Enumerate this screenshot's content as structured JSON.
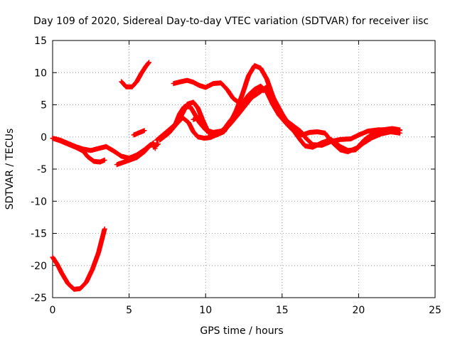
{
  "chart_data": {
    "type": "scatter",
    "title": "Day 109 of 2020, Sidereal Day-to-day VTEC variation (SDTVAR) for receiver iisc",
    "xlabel": "GPS time / hours",
    "ylabel": "SDTVAR / TECUs",
    "xlim": [
      0,
      25
    ],
    "ylim": [
      -25,
      15
    ],
    "xticks": [
      0,
      5,
      10,
      15,
      20,
      25
    ],
    "yticks": [
      -25,
      -20,
      -15,
      -10,
      -5,
      0,
      5,
      10,
      15
    ],
    "grid": true,
    "marker": "+",
    "color": "#ff0000",
    "series": [
      {
        "name": "s1",
        "points": [
          [
            0,
            -0.2
          ],
          [
            0.5,
            -0.5
          ],
          [
            1,
            -1
          ],
          [
            1.5,
            -1.5
          ],
          [
            2,
            -1.9
          ],
          [
            2.5,
            -2.1
          ],
          [
            3,
            -1.8
          ],
          [
            3.5,
            -1.5
          ],
          [
            4,
            -2.2
          ],
          [
            4.5,
            -3
          ],
          [
            5,
            -3.3
          ],
          [
            5.5,
            -2.8
          ],
          [
            6,
            -2
          ],
          [
            6.4,
            -1.2
          ]
        ]
      },
      {
        "name": "s2",
        "points": [
          [
            0,
            -0.2
          ],
          [
            0.5,
            -0.6
          ],
          [
            1,
            -1.1
          ],
          [
            1.5,
            -1.6
          ],
          [
            2,
            -2.2
          ],
          [
            2.3,
            -3.1
          ],
          [
            2.7,
            -3.8
          ],
          [
            3.1,
            -3.9
          ],
          [
            3.4,
            -3.6
          ]
        ]
      },
      {
        "name": "s3",
        "points": [
          [
            4.2,
            -4.3
          ],
          [
            4.8,
            -3.8
          ],
          [
            5.5,
            -3.2
          ],
          [
            6,
            -2.3
          ],
          [
            6.3,
            -1.5
          ],
          [
            6.6,
            -0.9
          ]
        ]
      },
      {
        "name": "s4",
        "points": [
          [
            6.6,
            -1.6
          ],
          [
            6.9,
            -1.1
          ]
        ]
      },
      {
        "name": "s5",
        "points": [
          [
            0,
            -18.7
          ],
          [
            0.3,
            -19.8
          ],
          [
            0.6,
            -21.2
          ],
          [
            1,
            -22.8
          ],
          [
            1.4,
            -23.7
          ],
          [
            1.8,
            -23.6
          ],
          [
            2.2,
            -22.6
          ],
          [
            2.6,
            -20.6
          ],
          [
            3,
            -18
          ],
          [
            3.4,
            -14.3
          ]
        ]
      },
      {
        "name": "s6",
        "points": [
          [
            4.5,
            8.6
          ],
          [
            4.8,
            7.8
          ],
          [
            5.2,
            7.8
          ],
          [
            5.5,
            8.6
          ],
          [
            5.8,
            9.9
          ],
          [
            6.1,
            11
          ],
          [
            6.3,
            11.6
          ]
        ]
      },
      {
        "name": "s7",
        "points": [
          [
            5.3,
            0.3
          ],
          [
            5.7,
            0.7
          ],
          [
            6,
            1
          ]
        ]
      },
      {
        "name": "s8",
        "points": [
          [
            6.8,
            -0.5
          ],
          [
            7.3,
            0.5
          ],
          [
            7.8,
            1.5
          ],
          [
            8.2,
            2.4
          ],
          [
            8.5,
            3.7
          ],
          [
            8.8,
            5.1
          ],
          [
            9.2,
            5.4
          ],
          [
            9.5,
            4.5
          ],
          [
            9.8,
            2.7
          ],
          [
            10.2,
            0.6
          ],
          [
            10.7,
            0.3
          ],
          [
            11.2,
            0.8
          ],
          [
            11.6,
            2.2
          ],
          [
            12,
            4.1
          ],
          [
            12.4,
            6.6
          ],
          [
            12.8,
            9.5
          ],
          [
            13.2,
            11.1
          ],
          [
            13.6,
            10.7
          ],
          [
            14,
            9
          ],
          [
            14.4,
            6.3
          ],
          [
            14.8,
            3.8
          ],
          [
            15.3,
            2.5
          ],
          [
            15.8,
            1.6
          ],
          [
            16.2,
            0.9
          ],
          [
            16.6,
            -0.3
          ],
          [
            17,
            -1.2
          ],
          [
            17.6,
            -1.3
          ],
          [
            18.2,
            -0.7
          ],
          [
            18.8,
            -0.4
          ],
          [
            19.5,
            -0.3
          ],
          [
            20,
            0.3
          ],
          [
            20.6,
            0.9
          ],
          [
            21.3,
            1.1
          ],
          [
            22,
            1.1
          ],
          [
            22.7,
            1
          ]
        ]
      },
      {
        "name": "s9",
        "points": [
          [
            7,
            -0.5
          ],
          [
            7.6,
            0.6
          ],
          [
            8.1,
            2
          ],
          [
            8.5,
            3
          ],
          [
            8.9,
            2.2
          ],
          [
            9.2,
            0.8
          ],
          [
            9.5,
            0
          ],
          [
            9.9,
            -0.2
          ],
          [
            10.3,
            -0.1
          ],
          [
            10.8,
            0.4
          ],
          [
            11.2,
            1.2
          ],
          [
            11.6,
            2.5
          ],
          [
            12,
            3.6
          ],
          [
            12.4,
            5.2
          ],
          [
            12.8,
            6.5
          ],
          [
            13.2,
            7.4
          ],
          [
            13.6,
            7.9
          ],
          [
            14,
            7
          ],
          [
            14.4,
            5
          ],
          [
            14.8,
            3.4
          ],
          [
            15.3,
            2
          ],
          [
            15.8,
            0.8
          ],
          [
            16.2,
            -0.5
          ],
          [
            16.5,
            -1.4
          ],
          [
            17,
            -1.6
          ],
          [
            17.6,
            -0.9
          ],
          [
            18.2,
            -0.4
          ],
          [
            18.8,
            -1.5
          ],
          [
            19.3,
            -2.1
          ],
          [
            19.8,
            -2
          ],
          [
            20.3,
            -1
          ],
          [
            20.9,
            -0.1
          ],
          [
            21.5,
            0.5
          ],
          [
            22.1,
            0.8
          ],
          [
            22.7,
            0.6
          ]
        ]
      },
      {
        "name": "s10",
        "points": [
          [
            8,
            1.8
          ],
          [
            8.3,
            3.6
          ],
          [
            8.6,
            4.7
          ],
          [
            9,
            4.7
          ],
          [
            9.3,
            3.5
          ],
          [
            9.6,
            2.2
          ],
          [
            10,
            1.1
          ],
          [
            10.5,
            0.7
          ],
          [
            11,
            0.9
          ],
          [
            11.5,
            1.7
          ],
          [
            12,
            3.1
          ],
          [
            12.5,
            4.6
          ],
          [
            13,
            6.1
          ],
          [
            13.5,
            6.9
          ],
          [
            14,
            7.8
          ],
          [
            14.5,
            5.8
          ],
          [
            15,
            3.6
          ],
          [
            15.4,
            2.1
          ],
          [
            15.8,
            0.9
          ],
          [
            16.3,
            0.3
          ],
          [
            16.8,
            0.7
          ],
          [
            17.3,
            0.8
          ],
          [
            17.8,
            0.6
          ],
          [
            18.3,
            -0.9
          ],
          [
            18.8,
            -2
          ],
          [
            19.3,
            -2.3
          ],
          [
            19.9,
            -1.7
          ],
          [
            20.4,
            -0.4
          ],
          [
            21,
            0.6
          ],
          [
            21.6,
            1.1
          ],
          [
            22.2,
            1.3
          ],
          [
            22.7,
            1.1
          ]
        ]
      },
      {
        "name": "s11",
        "points": [
          [
            9.2,
            2.7
          ],
          [
            9.6,
            3.1
          ]
        ]
      },
      {
        "name": "s12",
        "points": [
          [
            7.9,
            8.3
          ],
          [
            8.4,
            8.6
          ],
          [
            8.8,
            8.8
          ],
          [
            9.2,
            8.5
          ],
          [
            9.6,
            8
          ],
          [
            10,
            7.7
          ],
          [
            10.5,
            8.3
          ],
          [
            11,
            8.4
          ],
          [
            11.4,
            7.4
          ],
          [
            11.8,
            6
          ],
          [
            12.2,
            5.3
          ],
          [
            12.6,
            5.4
          ],
          [
            13,
            6.6
          ],
          [
            13.4,
            7.6
          ],
          [
            13.8,
            7.2
          ]
        ]
      }
    ],
    "isolated_points": [
      [
        6.7,
        -1.8
      ]
    ]
  }
}
